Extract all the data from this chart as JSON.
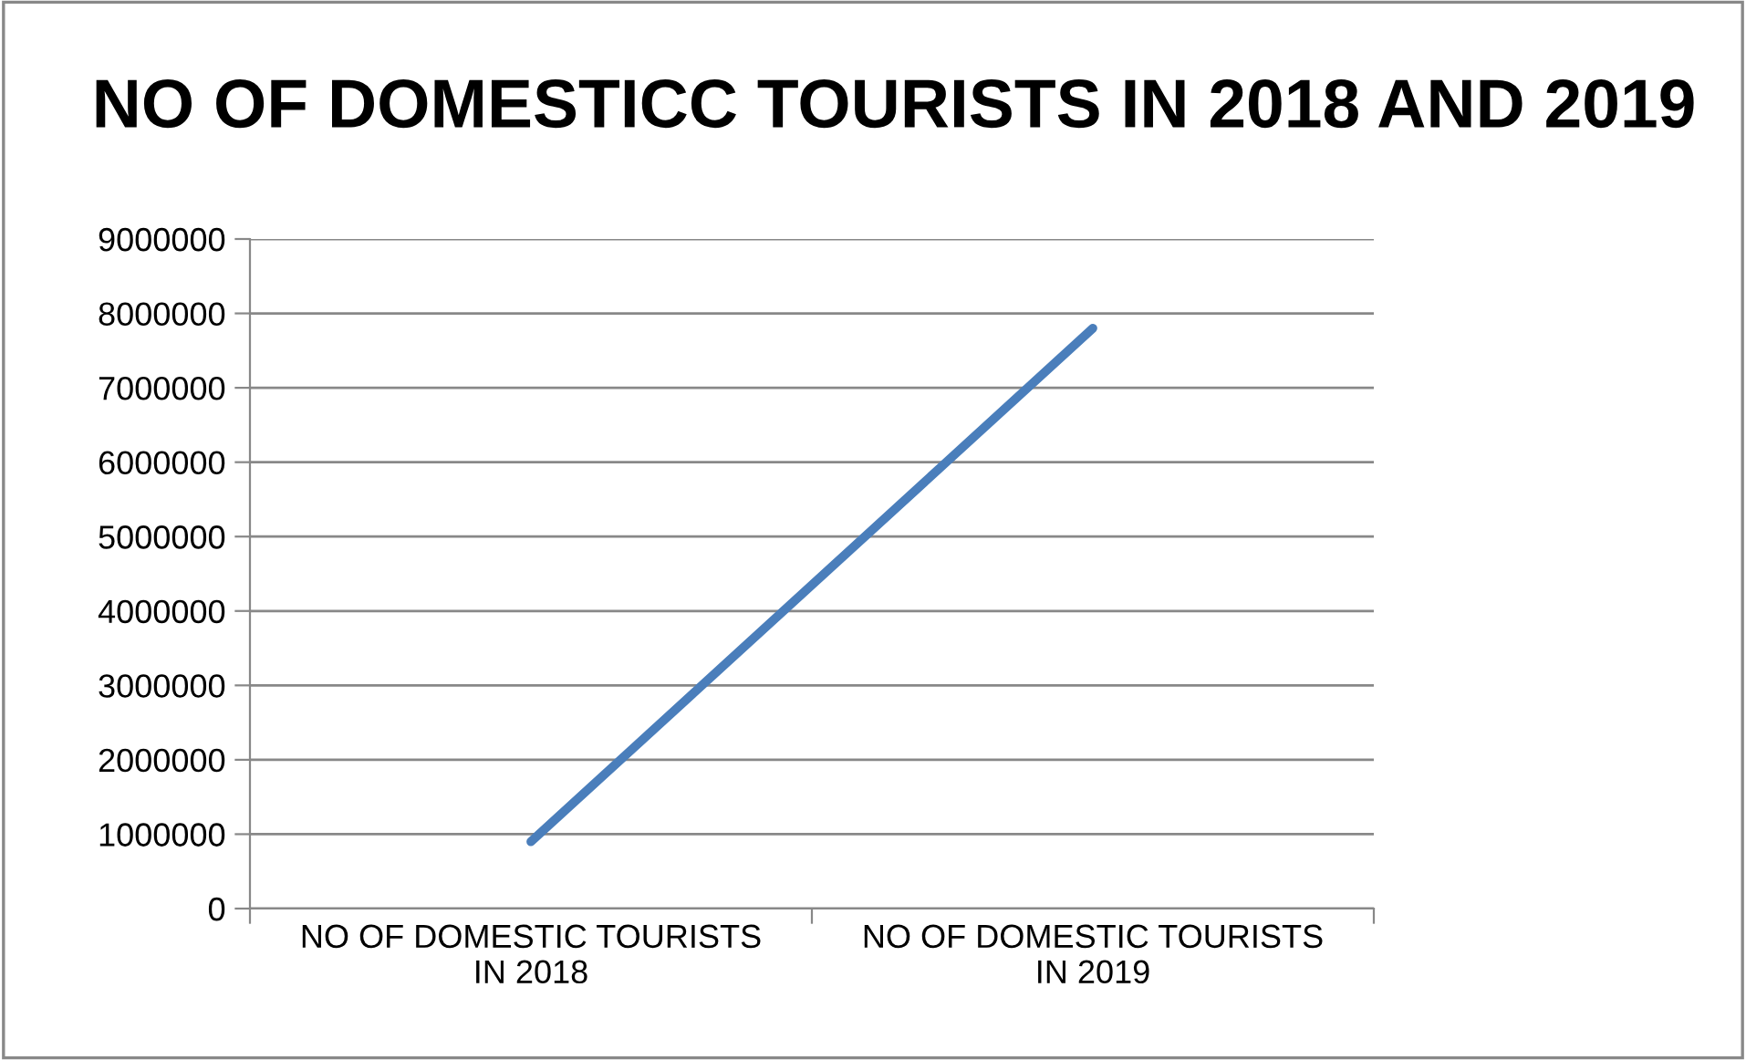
{
  "chart_data": {
    "type": "line",
    "title": "NO OF DOMESTICC TOURISTS IN 2018 AND 2019",
    "categories": [
      "NO OF DOMESTIC TOURISTS\nIN 2018",
      "NO OF DOMESTIC TOURISTS\nIN 2019"
    ],
    "series": [
      {
        "color": "#4a7ebb",
        "values": [
          900000,
          7800000
        ]
      }
    ],
    "ylim": [
      0,
      9000000
    ],
    "yticks": [
      0,
      1000000,
      2000000,
      3000000,
      4000000,
      5000000,
      6000000,
      7000000,
      8000000,
      9000000
    ],
    "grid": "y",
    "legend": false,
    "marker": "none",
    "line_style": "solid"
  }
}
